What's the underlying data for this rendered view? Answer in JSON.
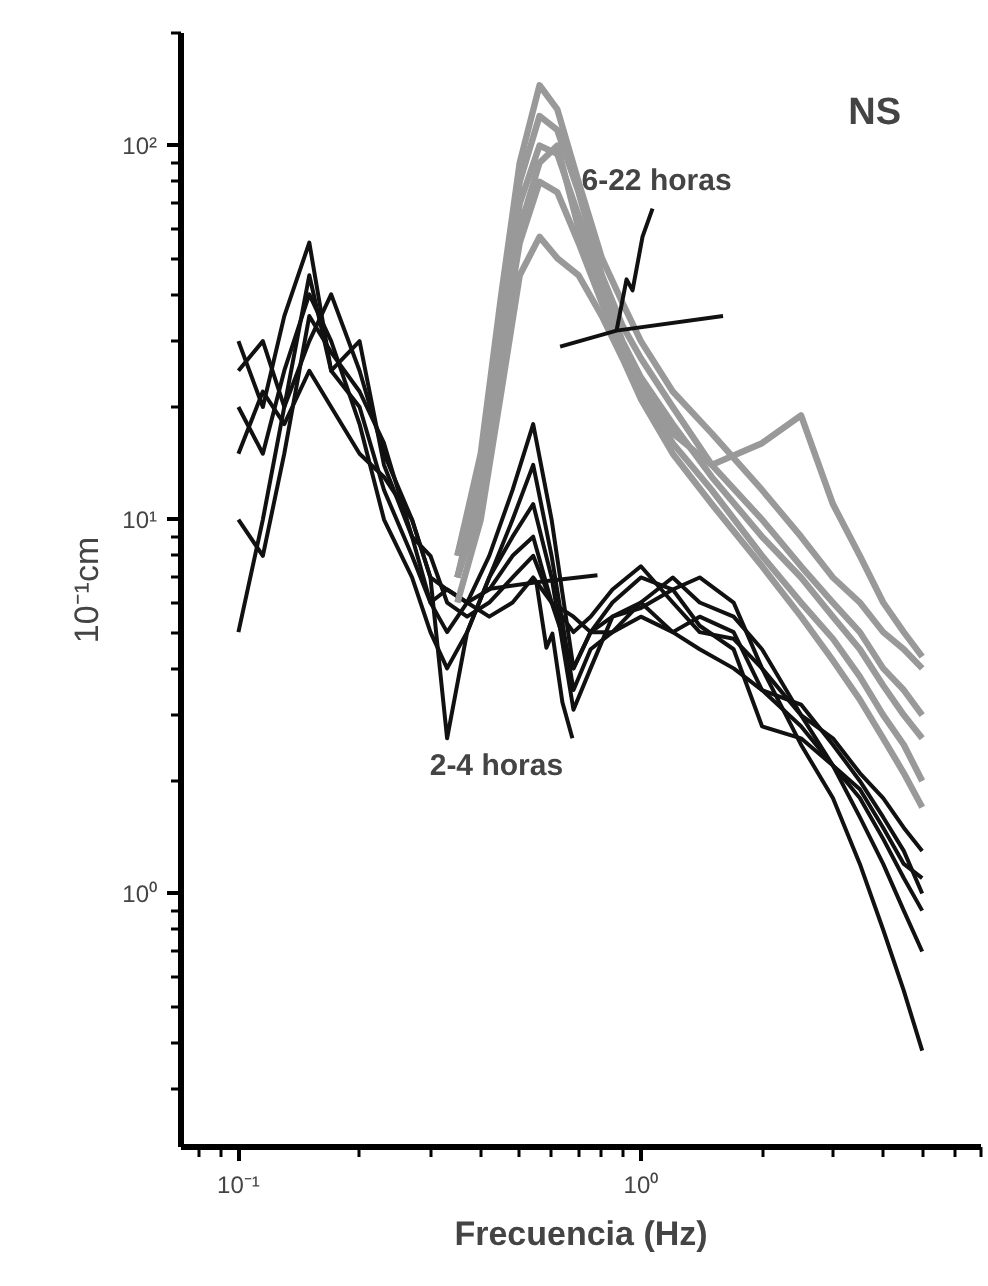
{
  "chart_data": {
    "type": "line",
    "title": "NS",
    "xlabel": "Frecuencia (Hz)",
    "ylabel": "10⁻¹cm",
    "log": "xy",
    "grid": false,
    "marker": "none",
    "line_style": "solid",
    "xlim": [
      0.072,
      7.0
    ],
    "ylim": [
      0.21,
      200
    ],
    "xticks": [
      {
        "value": 0.1,
        "label": "10⁻¹"
      },
      {
        "value": 1,
        "label": "10⁰"
      }
    ],
    "yticks": [
      {
        "value": 1,
        "label": "10⁰"
      },
      {
        "value": 10,
        "label": "10¹"
      },
      {
        "value": 100,
        "label": "10²"
      }
    ],
    "annotations": [
      {
        "text": "6-22 horas",
        "x": 0.87,
        "y": 32
      },
      {
        "text": "2-4 horas",
        "x": 0.55,
        "y": 6.8
      }
    ],
    "series": [
      {
        "color": "#111111",
        "x": [
          0.1,
          0.115,
          0.13,
          0.15,
          0.17,
          0.2,
          0.23,
          0.27,
          0.3,
          0.33,
          0.37,
          0.42,
          0.48,
          0.54,
          0.6,
          0.68,
          0.75,
          0.85,
          1.0,
          1.2,
          1.4,
          1.7,
          2.0,
          2.5,
          3.0,
          3.5,
          4.0,
          4.5,
          5.0
        ],
        "values": [
          30,
          20,
          35,
          55,
          25,
          20,
          12,
          8,
          6,
          5,
          6,
          8,
          12,
          18,
          10,
          4,
          5,
          6,
          7,
          6.5,
          7,
          6,
          4,
          2.5,
          1.8,
          1.2,
          0.8,
          0.55,
          0.38
        ]
      },
      {
        "color": "#111111",
        "x": [
          0.1,
          0.115,
          0.13,
          0.15,
          0.17,
          0.2,
          0.23,
          0.27,
          0.3,
          0.33,
          0.37,
          0.42,
          0.48,
          0.54,
          0.6,
          0.68,
          0.75,
          0.85,
          1.0,
          1.2,
          1.4,
          1.7,
          2.0,
          2.5,
          3.0,
          3.5,
          4.0,
          4.5,
          5.0
        ],
        "values": [
          20,
          15,
          25,
          40,
          30,
          18,
          10,
          7,
          5,
          4,
          5,
          7,
          10,
          14,
          8,
          3.5,
          4.5,
          5,
          6,
          7,
          6,
          5.5,
          4.5,
          3,
          2.2,
          1.6,
          1.2,
          0.9,
          0.7
        ]
      },
      {
        "color": "#111111",
        "x": [
          0.1,
          0.115,
          0.13,
          0.15,
          0.17,
          0.2,
          0.23,
          0.27,
          0.3,
          0.33,
          0.37,
          0.42,
          0.48,
          0.54,
          0.6,
          0.68,
          0.75,
          0.85,
          1.0,
          1.2,
          1.4,
          1.7,
          2.0,
          2.5,
          3.0,
          3.5,
          4.0,
          4.5,
          5.0
        ],
        "values": [
          25,
          30,
          20,
          30,
          40,
          25,
          15,
          10,
          7,
          2.6,
          5,
          7,
          9,
          11,
          7,
          3.1,
          4,
          5.5,
          6,
          5,
          5.5,
          5,
          3.5,
          3.2,
          2.5,
          2,
          1.6,
          1.3,
          1.0
        ]
      },
      {
        "color": "#111111",
        "x": [
          0.1,
          0.115,
          0.13,
          0.15,
          0.17,
          0.2,
          0.23,
          0.27,
          0.3,
          0.33,
          0.37,
          0.42,
          0.48,
          0.54,
          0.6,
          0.68,
          0.75,
          0.85,
          1.0,
          1.2,
          1.4,
          1.7,
          2.0,
          2.5,
          3.0,
          3.5,
          4.0,
          4.5,
          5.0
        ],
        "values": [
          10,
          8,
          15,
          35,
          28,
          22,
          16,
          9,
          6,
          6.5,
          6,
          6.5,
          8,
          9,
          6,
          4,
          5,
          5.5,
          5.8,
          6.5,
          5.2,
          4.5,
          2.8,
          2.6,
          2.2,
          1.9,
          1.5,
          1.2,
          1.1
        ]
      },
      {
        "color": "#111111",
        "x": [
          0.1,
          0.115,
          0.13,
          0.15,
          0.17,
          0.2,
          0.23,
          0.27,
          0.3,
          0.33,
          0.37,
          0.42,
          0.48,
          0.54,
          0.6,
          0.68,
          0.75,
          0.85,
          1.0,
          1.2,
          1.4,
          1.7,
          2.0,
          2.5,
          3.0,
          3.5,
          4.0,
          4.5,
          5.0
        ],
        "values": [
          5,
          10,
          20,
          45,
          25,
          30,
          14,
          9,
          8,
          6,
          5.5,
          6,
          7,
          8,
          6,
          5,
          5.5,
          6.5,
          7.5,
          6,
          5,
          4.8,
          4,
          3,
          2.6,
          2.1,
          1.8,
          1.5,
          1.3
        ]
      },
      {
        "color": "#111111",
        "x": [
          0.1,
          0.115,
          0.13,
          0.15,
          0.17,
          0.2,
          0.23,
          0.27,
          0.3,
          0.33,
          0.37,
          0.42,
          0.48,
          0.54,
          0.6,
          0.68,
          0.75,
          0.85,
          1.0,
          1.2,
          1.4,
          1.7,
          2.0,
          2.5,
          3.0,
          3.5,
          4.0,
          4.5,
          5.0
        ],
        "values": [
          15,
          22,
          18,
          25,
          20,
          15,
          13,
          10,
          7,
          6.5,
          6,
          5.5,
          6,
          7,
          6,
          5.5,
          5,
          5,
          5.5,
          5,
          4.5,
          4,
          3.5,
          2.8,
          2.2,
          1.8,
          1.4,
          1.1,
          0.9
        ]
      },
      {
        "color": "#999999",
        "x": [
          0.35,
          0.4,
          0.45,
          0.5,
          0.56,
          0.62,
          0.7,
          0.8,
          0.9,
          1.0,
          1.2,
          1.5,
          2.0,
          2.5,
          3.0,
          3.5,
          4.0,
          4.5,
          5.0
        ],
        "values": [
          8,
          15,
          40,
          90,
          145,
          125,
          80,
          50,
          38,
          30,
          22,
          17,
          12,
          9,
          7,
          6,
          5,
          4.5,
          4
        ]
      },
      {
        "color": "#999999",
        "x": [
          0.35,
          0.4,
          0.45,
          0.5,
          0.56,
          0.62,
          0.7,
          0.8,
          0.9,
          1.0,
          1.2,
          1.5,
          2.0,
          2.5,
          3.0,
          3.5,
          4.0,
          4.5,
          5.0
        ],
        "values": [
          7,
          13,
          35,
          80,
          120,
          110,
          75,
          45,
          33,
          27,
          20,
          14,
          10,
          7.5,
          6,
          5,
          4,
          3.5,
          3
        ]
      },
      {
        "color": "#999999",
        "x": [
          0.35,
          0.4,
          0.45,
          0.5,
          0.56,
          0.62,
          0.7,
          0.8,
          0.9,
          1.0,
          1.2,
          1.5,
          2.0,
          2.5,
          3.0,
          3.5,
          4.0,
          4.5,
          5.0
        ],
        "values": [
          8,
          14,
          30,
          70,
          100,
          95,
          65,
          42,
          30,
          24,
          18,
          13,
          9,
          7,
          5.5,
          4.5,
          3.6,
          3,
          2.6
        ]
      },
      {
        "color": "#999999",
        "x": [
          0.35,
          0.4,
          0.45,
          0.5,
          0.56,
          0.62,
          0.7,
          0.8,
          0.9,
          1.0,
          1.2,
          1.5,
          2.0,
          2.5,
          3.0,
          3.5,
          4.0,
          4.5,
          5.0
        ],
        "values": [
          7,
          12,
          28,
          55,
          80,
          75,
          55,
          38,
          28,
          22,
          16,
          12,
          8,
          6,
          4.8,
          3.8,
          3,
          2.5,
          2
        ]
      },
      {
        "color": "#999999",
        "x": [
          0.35,
          0.4,
          0.45,
          0.5,
          0.56,
          0.62,
          0.7,
          0.8,
          0.9,
          1.0,
          1.2,
          1.5,
          2.0,
          2.5,
          3.0,
          3.5,
          4.0,
          4.5,
          5.0
        ],
        "values": [
          6,
          10,
          22,
          45,
          57,
          50,
          45,
          35,
          27,
          21,
          15,
          11,
          7.5,
          5.5,
          4.2,
          3.3,
          2.6,
          2.1,
          1.7
        ]
      },
      {
        "color": "#999999",
        "x": [
          0.35,
          0.4,
          0.45,
          0.5,
          0.56,
          0.62,
          0.7,
          0.8,
          0.9,
          1.0,
          1.2,
          1.5,
          2.0,
          2.5,
          3.0,
          3.5,
          4.0,
          4.5,
          5.0
        ],
        "values": [
          7,
          11,
          26,
          60,
          90,
          100,
          60,
          40,
          29,
          23,
          17,
          14,
          16,
          19,
          11,
          8,
          6,
          5,
          4.3
        ]
      },
      {
        "color": "#111111",
        "x": [
          0.63,
          0.87,
          1.6
        ],
        "values": [
          29,
          32,
          35
        ]
      },
      {
        "color": "#111111",
        "x": [
          0.41,
          0.55,
          0.78
        ],
        "values": [
          6.5,
          6.8,
          7.1
        ]
      }
    ]
  }
}
